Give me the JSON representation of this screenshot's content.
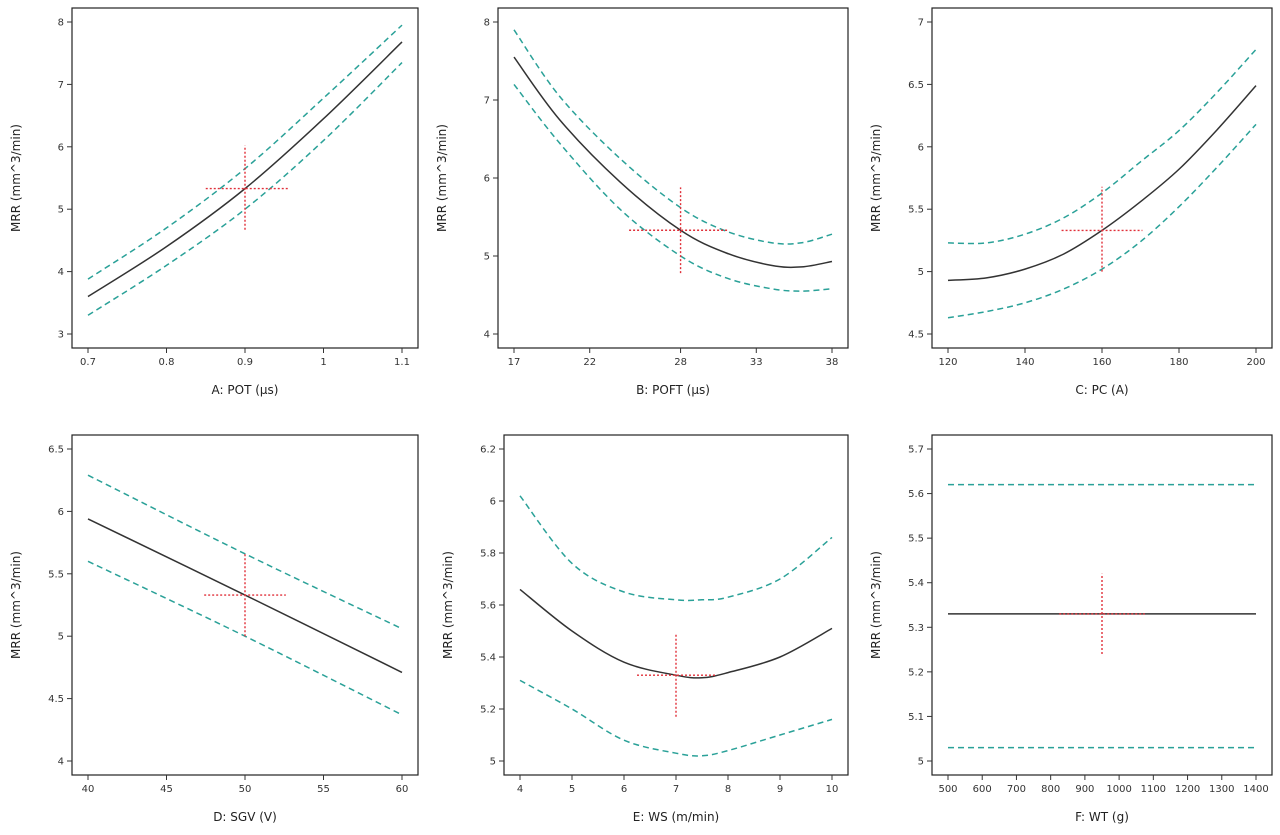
{
  "colors": {
    "main": "#333333",
    "ci": "#2aa198",
    "cross": "#e0303a"
  },
  "chart_data": [
    {
      "type": "line",
      "xlabel": "A: POT (µs)",
      "ylabel": "MRR (mm^3/min)",
      "xlim": [
        0.7,
        1.1
      ],
      "ylim": [
        3,
        8
      ],
      "xticks": [
        0.7,
        0.8,
        0.9,
        1,
        1.1
      ],
      "yticks": [
        3,
        4,
        5,
        6,
        7,
        8
      ],
      "xtick_labels": [
        "0.7",
        "0.8",
        "0.9",
        "1",
        "1.1"
      ],
      "ytick_labels": [
        "3",
        "4",
        "5",
        "6",
        "7",
        "8"
      ],
      "series": [
        {
          "name": "lower",
          "style": "ci",
          "x": [
            0.7,
            0.8,
            0.9,
            1.0,
            1.1
          ],
          "y": [
            3.3,
            4.1,
            5.0,
            6.1,
            7.35
          ]
        },
        {
          "name": "mean",
          "style": "main",
          "x": [
            0.7,
            0.8,
            0.9,
            1.0,
            1.1
          ],
          "y": [
            3.6,
            4.4,
            5.33,
            6.45,
            7.68
          ]
        },
        {
          "name": "upper",
          "style": "ci",
          "x": [
            0.7,
            0.8,
            0.9,
            1.0,
            1.1
          ],
          "y": [
            3.88,
            4.7,
            5.65,
            6.78,
            7.95
          ]
        }
      ],
      "crosshair": {
        "x": 0.9,
        "y": 5.33,
        "x_range": [
          0.85,
          0.955
        ],
        "y_range": [
          4.67,
          6.02
        ]
      }
    },
    {
      "type": "line",
      "xlabel": "B: POFT (µs)",
      "ylabel": "MRR (mm^3/min)",
      "xlim": [
        17,
        38
      ],
      "ylim": [
        4,
        8
      ],
      "xticks": [
        17,
        22,
        28,
        33,
        38
      ],
      "yticks": [
        4,
        5,
        6,
        7,
        8
      ],
      "xtick_labels": [
        "17",
        "22",
        "28",
        "33",
        "38"
      ],
      "ytick_labels": [
        "4",
        "5",
        "6",
        "7",
        "8"
      ],
      "series": [
        {
          "name": "lower",
          "style": "ci",
          "x": [
            17,
            20,
            24,
            28,
            31,
            34,
            36,
            38
          ],
          "y": [
            7.2,
            6.45,
            5.6,
            5.0,
            4.72,
            4.58,
            4.55,
            4.58
          ]
        },
        {
          "name": "mean",
          "style": "main",
          "x": [
            17,
            20,
            24,
            28,
            31,
            34,
            36,
            38
          ],
          "y": [
            7.55,
            6.75,
            5.95,
            5.33,
            5.04,
            4.88,
            4.86,
            4.93
          ]
        },
        {
          "name": "upper",
          "style": "ci",
          "x": [
            17,
            20,
            24,
            28,
            31,
            34,
            36,
            38
          ],
          "y": [
            7.9,
            7.05,
            6.25,
            5.62,
            5.32,
            5.17,
            5.17,
            5.28
          ]
        }
      ],
      "crosshair": {
        "x": 28,
        "y": 5.33,
        "x_range": [
          24.6,
          31.2
        ],
        "y_range": [
          4.78,
          5.88
        ]
      }
    },
    {
      "type": "line",
      "xlabel": "C: PC (A)",
      "ylabel": "MRR (mm^3/min)",
      "xlim": [
        120,
        200
      ],
      "ylim": [
        4.5,
        7
      ],
      "xticks": [
        120,
        140,
        160,
        180,
        200
      ],
      "yticks": [
        4.5,
        5,
        5.5,
        6,
        6.5,
        7
      ],
      "xtick_labels": [
        "120",
        "140",
        "160",
        "180",
        "200"
      ],
      "ytick_labels": [
        "4.5",
        "5",
        "5.5",
        "6",
        "6.5",
        "7"
      ],
      "series": [
        {
          "name": "lower",
          "style": "ci",
          "x": [
            120,
            130,
            140,
            150,
            160,
            170,
            180,
            190,
            200
          ],
          "y": [
            4.63,
            4.68,
            4.75,
            4.86,
            5.02,
            5.24,
            5.52,
            5.84,
            6.18
          ]
        },
        {
          "name": "mean",
          "style": "main",
          "x": [
            120,
            130,
            140,
            150,
            160,
            170,
            180,
            190,
            200
          ],
          "y": [
            4.93,
            4.95,
            5.02,
            5.14,
            5.33,
            5.56,
            5.82,
            6.14,
            6.49
          ]
        },
        {
          "name": "upper",
          "style": "ci",
          "x": [
            120,
            130,
            140,
            150,
            160,
            170,
            180,
            190,
            200
          ],
          "y": [
            5.23,
            5.23,
            5.3,
            5.43,
            5.63,
            5.88,
            6.13,
            6.44,
            6.78
          ]
        }
      ],
      "crosshair": {
        "x": 160,
        "y": 5.33,
        "x_range": [
          149.5,
          170.5
        ],
        "y_range": [
          5.0,
          5.68
        ]
      }
    },
    {
      "type": "line",
      "xlabel": "D: SGV (V)",
      "ylabel": "MRR (mm^3/min)",
      "xlim": [
        40,
        60
      ],
      "ylim": [
        4,
        6.5
      ],
      "xticks": [
        40,
        45,
        50,
        55,
        60
      ],
      "yticks": [
        4,
        4.5,
        5,
        5.5,
        6,
        6.5
      ],
      "xtick_labels": [
        "40",
        "45",
        "50",
        "55",
        "60"
      ],
      "ytick_labels": [
        "4",
        "4.5",
        "5",
        "5.5",
        "6",
        "6.5"
      ],
      "series": [
        {
          "name": "lower",
          "style": "ci",
          "x": [
            40,
            50,
            60
          ],
          "y": [
            5.6,
            5.0,
            4.37
          ]
        },
        {
          "name": "mean",
          "style": "main",
          "x": [
            40,
            50,
            60
          ],
          "y": [
            5.94,
            5.33,
            4.71
          ]
        },
        {
          "name": "upper",
          "style": "ci",
          "x": [
            40,
            50,
            60
          ],
          "y": [
            6.29,
            5.66,
            5.06
          ]
        }
      ],
      "crosshair": {
        "x": 50,
        "y": 5.33,
        "x_range": [
          47.4,
          52.6
        ],
        "y_range": [
          5.0,
          5.67
        ]
      }
    },
    {
      "type": "line",
      "xlabel": "E: WS (m/min)",
      "ylabel": "MRR (mm^3/min)",
      "xlim": [
        4,
        10
      ],
      "ylim": [
        5,
        6.2
      ],
      "xticks": [
        4,
        5,
        6,
        7,
        8,
        9,
        10
      ],
      "yticks": [
        5,
        5.2,
        5.4,
        5.6,
        5.8,
        6,
        6.2
      ],
      "xtick_labels": [
        "4",
        "5",
        "6",
        "7",
        "8",
        "9",
        "10"
      ],
      "ytick_labels": [
        "5",
        "5.2",
        "5.4",
        "5.6",
        "5.8",
        "6",
        "6.2"
      ],
      "series": [
        {
          "name": "lower",
          "style": "ci",
          "x": [
            4,
            5,
            6,
            7,
            7.5,
            8,
            9,
            10
          ],
          "y": [
            5.31,
            5.2,
            5.08,
            5.03,
            5.02,
            5.04,
            5.1,
            5.16
          ]
        },
        {
          "name": "mean",
          "style": "main",
          "x": [
            4,
            5,
            6,
            7,
            7.5,
            8,
            9,
            10
          ],
          "y": [
            5.66,
            5.5,
            5.38,
            5.33,
            5.32,
            5.34,
            5.4,
            5.51
          ]
        },
        {
          "name": "upper",
          "style": "ci",
          "x": [
            4,
            5,
            6,
            7,
            7.5,
            8,
            9,
            10
          ],
          "y": [
            6.02,
            5.76,
            5.65,
            5.62,
            5.62,
            5.63,
            5.7,
            5.86
          ]
        }
      ],
      "crosshair": {
        "x": 7,
        "y": 5.33,
        "x_range": [
          6.25,
          7.75
        ],
        "y_range": [
          5.17,
          5.49
        ]
      }
    },
    {
      "type": "line",
      "xlabel": "F: WT (g)",
      "ylabel": "MRR (mm^3/min)",
      "xlim": [
        500,
        1400
      ],
      "ylim": [
        5,
        5.7
      ],
      "xticks": [
        500,
        600,
        700,
        800,
        900,
        1000,
        1100,
        1200,
        1300,
        1400
      ],
      "yticks": [
        5,
        5.1,
        5.2,
        5.3,
        5.4,
        5.5,
        5.6,
        5.7
      ],
      "xtick_labels": [
        "500",
        "600",
        "700",
        "800",
        "900",
        "1000",
        "1100",
        "1200",
        "1300",
        "1400"
      ],
      "ytick_labels": [
        "5",
        "5.1",
        "5.2",
        "5.3",
        "5.4",
        "5.5",
        "5.6",
        "5.7"
      ],
      "series": [
        {
          "name": "lower",
          "style": "ci",
          "x": [
            500,
            1400
          ],
          "y": [
            5.03,
            5.03
          ]
        },
        {
          "name": "mean",
          "style": "main",
          "x": [
            500,
            1400
          ],
          "y": [
            5.33,
            5.33
          ]
        },
        {
          "name": "upper",
          "style": "ci",
          "x": [
            500,
            1400
          ],
          "y": [
            5.62,
            5.62
          ]
        }
      ],
      "crosshair": {
        "x": 950,
        "y": 5.33,
        "x_range": [
          825,
          1075
        ],
        "y_range": [
          5.24,
          5.42
        ]
      }
    }
  ]
}
